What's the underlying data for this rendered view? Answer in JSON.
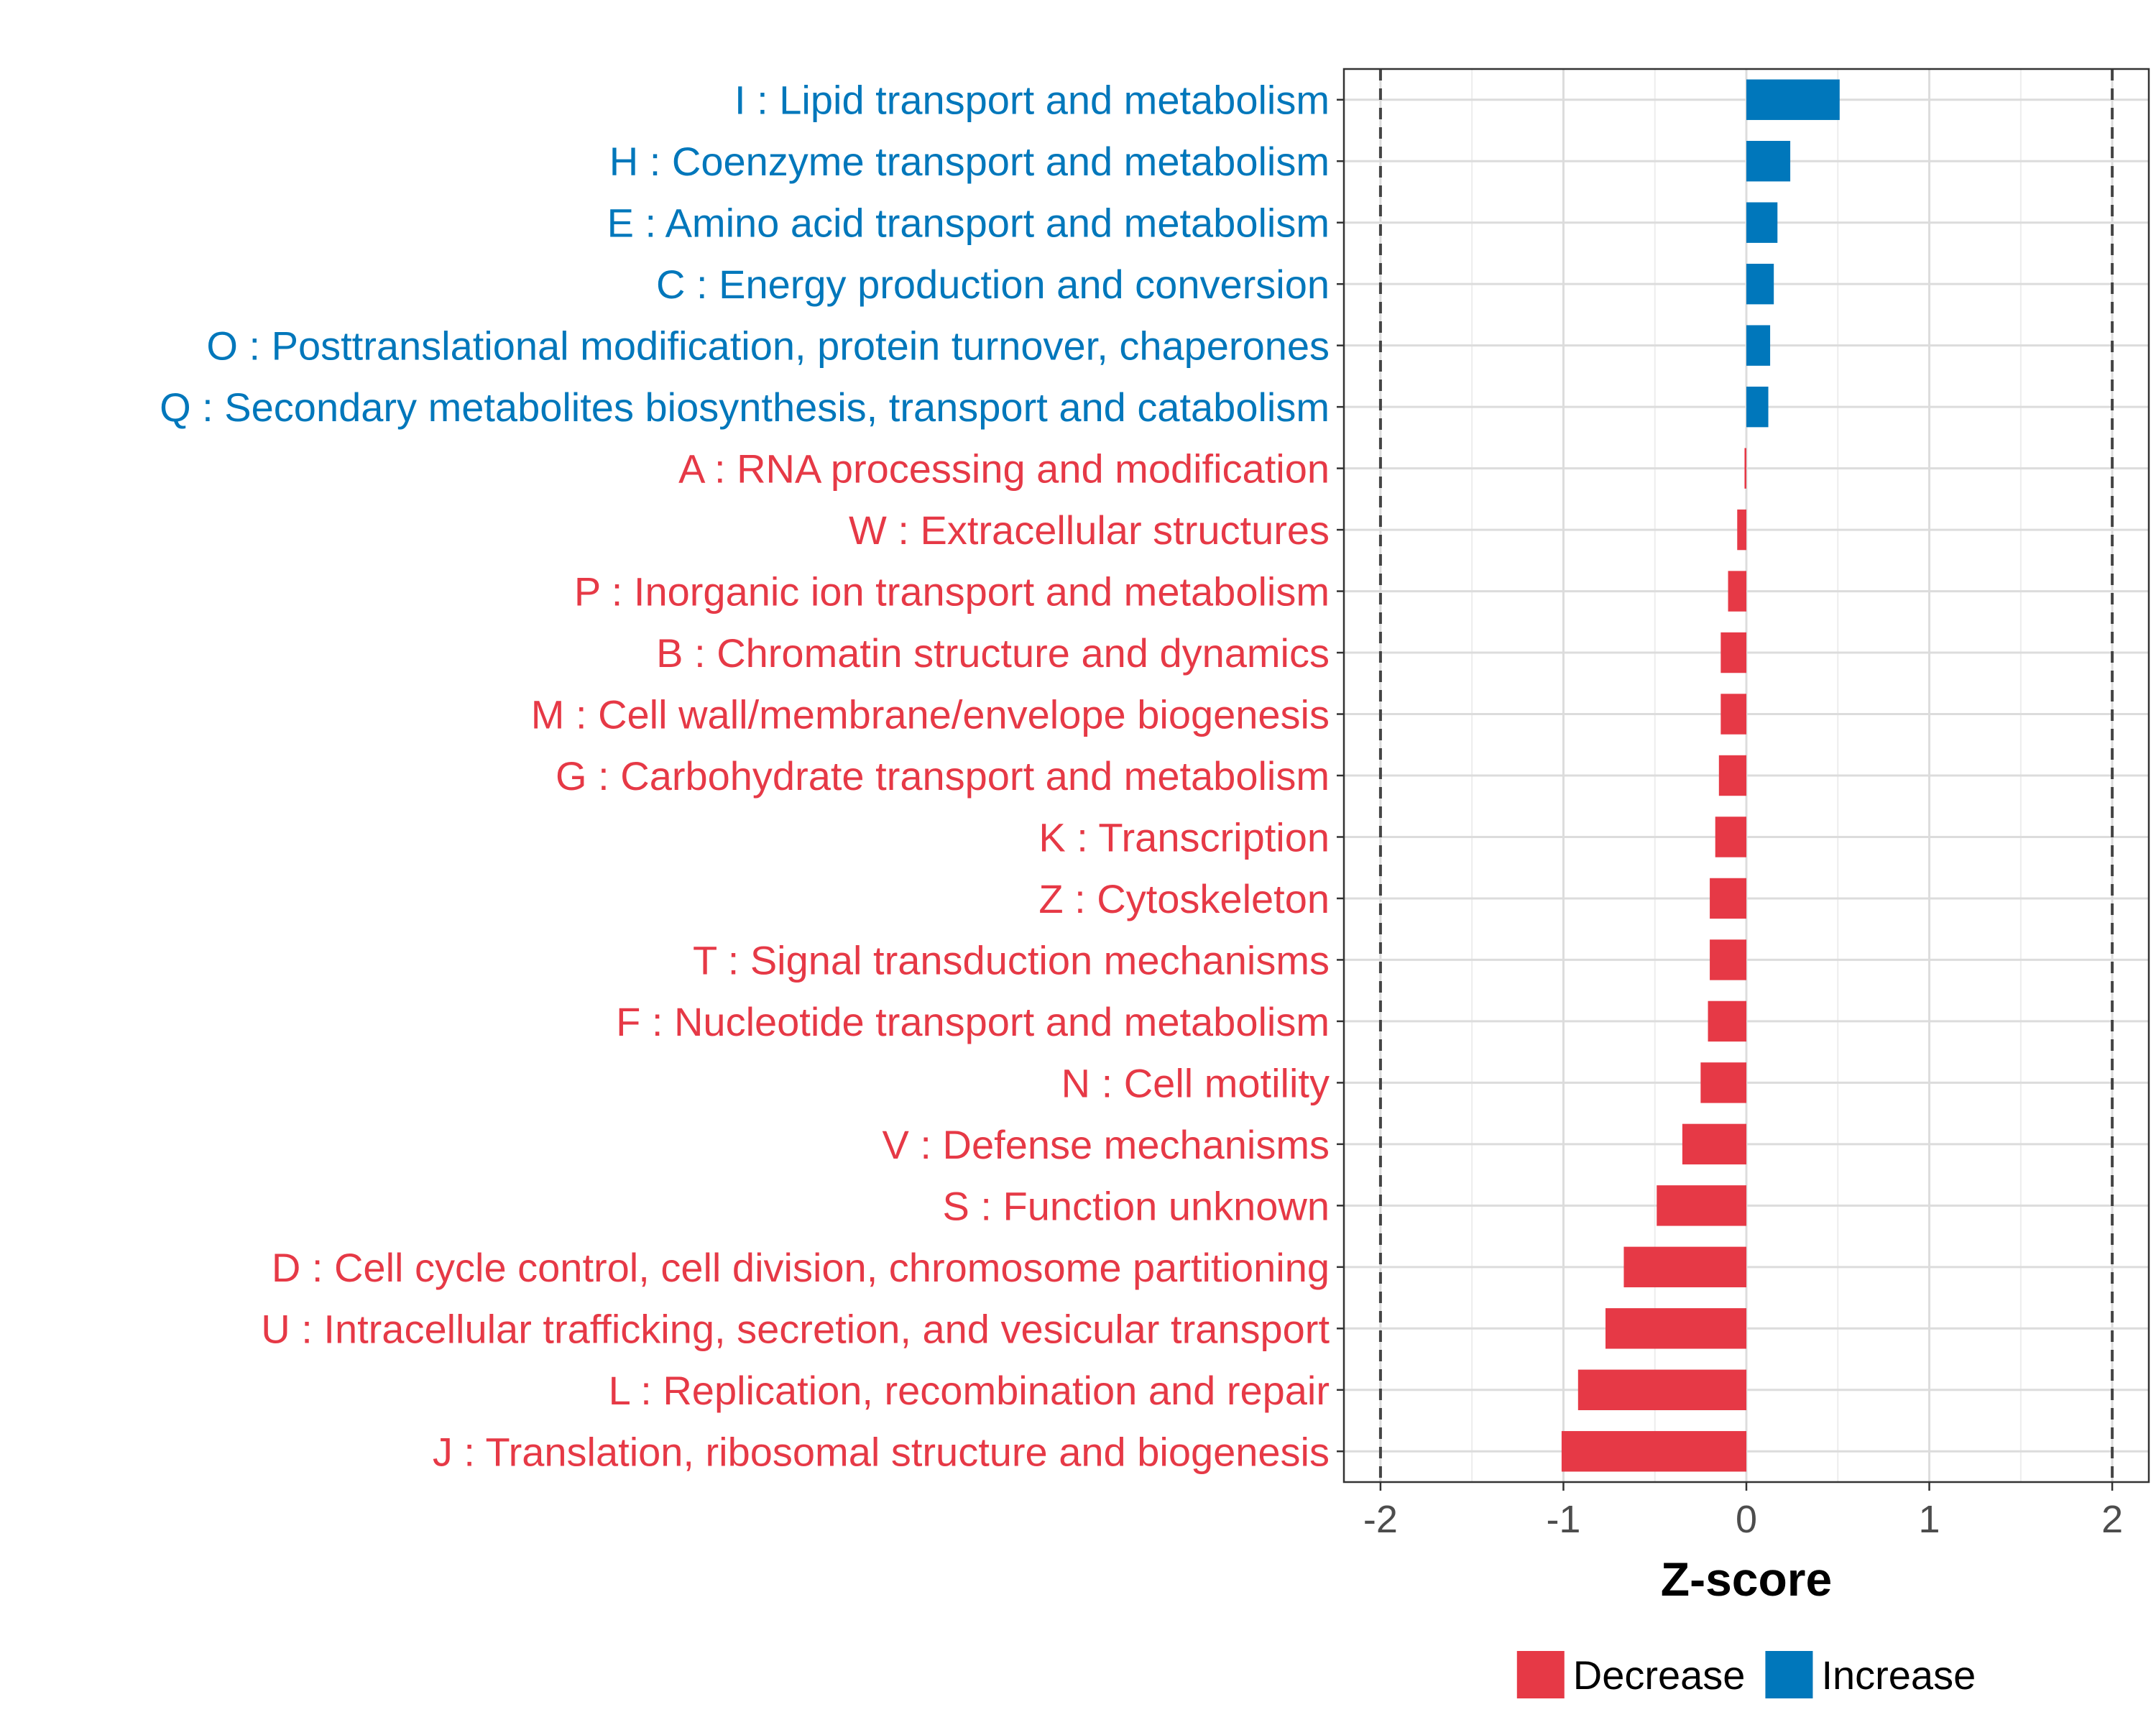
{
  "chart_data": {
    "type": "bar",
    "orientation": "horizontal",
    "title": "",
    "xlabel": "Z-score",
    "ylabel": "",
    "xlim": [
      -2.2,
      2.2
    ],
    "xticks": [
      -2,
      -1,
      0,
      1,
      2
    ],
    "xtick_labels": [
      "-2",
      "-1",
      "0",
      "1",
      "2"
    ],
    "reference_lines": [
      -2,
      2
    ],
    "grid": true,
    "categories": [
      "I : Lipid transport and metabolism",
      "H : Coenzyme transport and metabolism",
      "E : Amino acid transport and metabolism",
      "C : Energy production and conversion",
      "O : Posttranslational modification, protein turnover, chaperones",
      "Q : Secondary metabolites biosynthesis, transport and catabolism",
      "A : RNA processing and modification",
      "W : Extracellular structures",
      "P : Inorganic ion transport and metabolism",
      "B : Chromatin structure and dynamics",
      "M : Cell wall/membrane/envelope biogenesis",
      "G : Carbohydrate transport and metabolism",
      "K : Transcription",
      "Z : Cytoskeleton",
      "T : Signal transduction mechanisms",
      "F : Nucleotide transport and metabolism",
      "N : Cell motility",
      "V : Defense mechanisms",
      "S : Function unknown",
      "D : Cell cycle control, cell division, chromosome partitioning",
      "U : Intracellular trafficking, secretion, and vesicular transport",
      "L : Replication, recombination and repair",
      "J : Translation, ribosomal structure and biogenesis"
    ],
    "values": [
      0.51,
      0.24,
      0.17,
      0.15,
      0.13,
      0.12,
      -0.01,
      -0.05,
      -0.1,
      -0.14,
      -0.14,
      -0.15,
      -0.17,
      -0.2,
      -0.2,
      -0.21,
      -0.25,
      -0.35,
      -0.49,
      -0.67,
      -0.77,
      -0.92,
      -1.01
    ],
    "groups": [
      "Increase",
      "Increase",
      "Increase",
      "Increase",
      "Increase",
      "Increase",
      "Decrease",
      "Decrease",
      "Decrease",
      "Decrease",
      "Decrease",
      "Decrease",
      "Decrease",
      "Decrease",
      "Decrease",
      "Decrease",
      "Decrease",
      "Decrease",
      "Decrease",
      "Decrease",
      "Decrease",
      "Decrease",
      "Decrease"
    ],
    "legend": {
      "position": "bottom",
      "entries": [
        {
          "name": "Decrease",
          "color": "#e63946"
        },
        {
          "name": "Increase",
          "color": "#0077bb"
        }
      ]
    }
  }
}
